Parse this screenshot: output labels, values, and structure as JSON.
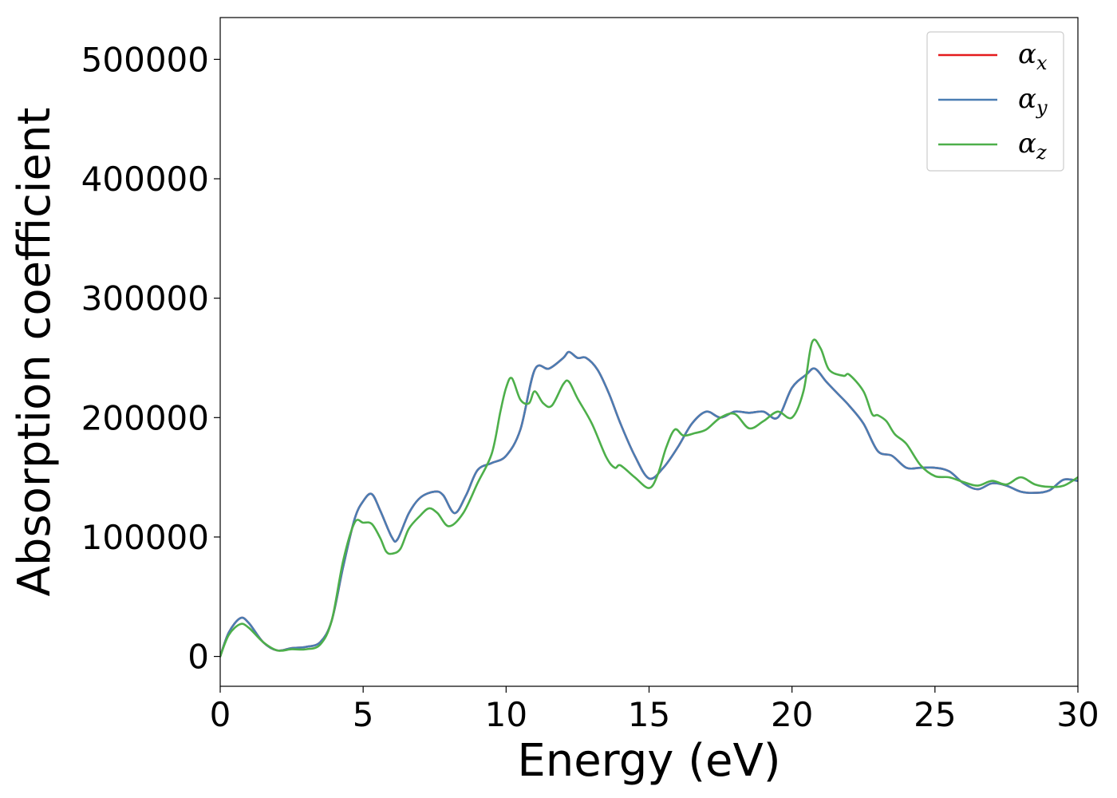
{
  "chart_data": {
    "type": "line",
    "title": "",
    "xlabel": "Energy (eV)",
    "ylabel": "Absorption coefficient",
    "xlim": [
      0,
      30
    ],
    "ylim": [
      -25000,
      535000
    ],
    "xticks": [
      0,
      5,
      10,
      15,
      20,
      25,
      30
    ],
    "xtick_labels": [
      "0",
      "5",
      "10",
      "15",
      "20",
      "25",
      "30"
    ],
    "yticks": [
      0,
      100000,
      200000,
      300000,
      400000,
      500000
    ],
    "ytick_labels": [
      "0",
      "100000",
      "200000",
      "300000",
      "400000",
      "500000"
    ],
    "grid": false,
    "legend_position": "top-right",
    "series": [
      {
        "name": "α",
        "subscript": "x",
        "color": "#e41a1c",
        "x": [
          0,
          0.3,
          0.7,
          1.0,
          1.5,
          2.0,
          2.5,
          3.0,
          3.5,
          3.9,
          4.3,
          4.7,
          5.0,
          5.3,
          5.6,
          6.0,
          6.2,
          6.6,
          7.0,
          7.5,
          7.8,
          8.2,
          8.6,
          9.0,
          9.5,
          10.0,
          10.5,
          11.0,
          11.5,
          12.0,
          12.2,
          12.5,
          12.8,
          13.2,
          13.6,
          14.0,
          14.5,
          15.0,
          15.5,
          16.0,
          16.5,
          17.0,
          17.5,
          18.0,
          18.5,
          19.0,
          19.5,
          20.0,
          20.5,
          20.8,
          21.2,
          21.6,
          22.0,
          22.5,
          23.0,
          23.5,
          24.0,
          24.5,
          25.0,
          25.5,
          26.0,
          26.5,
          27.0,
          27.5,
          28.0,
          28.5,
          29.0,
          29.5,
          30.0
        ],
        "y": [
          0,
          20000,
          32000,
          28000,
          12000,
          5000,
          7000,
          8000,
          12000,
          30000,
          75000,
          115000,
          130000,
          136000,
          122000,
          100000,
          98000,
          120000,
          133000,
          138000,
          135000,
          120000,
          135000,
          156000,
          162000,
          168000,
          190000,
          240000,
          241000,
          250000,
          255000,
          250000,
          250000,
          240000,
          220000,
          195000,
          168000,
          149000,
          158000,
          175000,
          195000,
          205000,
          200000,
          205000,
          204000,
          205000,
          200000,
          225000,
          236000,
          241000,
          230000,
          220000,
          210000,
          195000,
          172000,
          168000,
          158000,
          158000,
          158000,
          155000,
          145000,
          140000,
          145000,
          143000,
          138000,
          137000,
          139000,
          148000,
          147000
        ]
      },
      {
        "name": "α",
        "subscript": "y",
        "color": "#4a7db3",
        "x": [
          0,
          0.3,
          0.7,
          1.0,
          1.5,
          2.0,
          2.5,
          3.0,
          3.5,
          3.9,
          4.3,
          4.7,
          5.0,
          5.3,
          5.6,
          6.0,
          6.2,
          6.6,
          7.0,
          7.5,
          7.8,
          8.2,
          8.6,
          9.0,
          9.5,
          10.0,
          10.5,
          11.0,
          11.5,
          12.0,
          12.2,
          12.5,
          12.8,
          13.2,
          13.6,
          14.0,
          14.5,
          15.0,
          15.5,
          16.0,
          16.5,
          17.0,
          17.5,
          18.0,
          18.5,
          19.0,
          19.5,
          20.0,
          20.5,
          20.8,
          21.2,
          21.6,
          22.0,
          22.5,
          23.0,
          23.5,
          24.0,
          24.5,
          25.0,
          25.5,
          26.0,
          26.5,
          27.0,
          27.5,
          28.0,
          28.5,
          29.0,
          29.5,
          30.0
        ],
        "y": [
          0,
          20000,
          32000,
          28000,
          12000,
          5000,
          7000,
          8000,
          12000,
          30000,
          75000,
          115000,
          130000,
          136000,
          122000,
          100000,
          98000,
          120000,
          133000,
          138000,
          135000,
          120000,
          135000,
          156000,
          162000,
          168000,
          190000,
          240000,
          241000,
          250000,
          255000,
          250000,
          250000,
          240000,
          220000,
          195000,
          168000,
          149000,
          158000,
          175000,
          195000,
          205000,
          200000,
          205000,
          204000,
          205000,
          200000,
          225000,
          236000,
          241000,
          230000,
          220000,
          210000,
          195000,
          172000,
          168000,
          158000,
          158000,
          158000,
          155000,
          145000,
          140000,
          145000,
          143000,
          138000,
          137000,
          139000,
          148000,
          147000
        ]
      },
      {
        "name": "α",
        "subscript": "z",
        "color": "#4daf4a",
        "x": [
          0,
          0.3,
          0.7,
          1.0,
          1.5,
          2.0,
          2.5,
          3.0,
          3.5,
          3.9,
          4.3,
          4.7,
          5.0,
          5.3,
          5.6,
          5.8,
          6.0,
          6.3,
          6.6,
          7.0,
          7.3,
          7.6,
          8.0,
          8.5,
          9.0,
          9.5,
          9.8,
          10.0,
          10.2,
          10.5,
          10.8,
          11.0,
          11.3,
          11.6,
          12.0,
          12.2,
          12.5,
          13.0,
          13.5,
          13.8,
          14.0,
          14.5,
          15.0,
          15.3,
          15.6,
          15.9,
          16.2,
          16.6,
          17.0,
          17.5,
          18.0,
          18.5,
          19.0,
          19.5,
          20.0,
          20.4,
          20.7,
          21.0,
          21.3,
          21.8,
          22.0,
          22.5,
          22.8,
          23.0,
          23.3,
          23.6,
          24.0,
          24.5,
          25.0,
          25.5,
          26.0,
          26.5,
          27.0,
          27.5,
          28.0,
          28.5,
          29.0,
          29.5,
          30.0
        ],
        "y": [
          0,
          18000,
          27000,
          24000,
          12000,
          5000,
          6000,
          6000,
          10000,
          30000,
          80000,
          112000,
          112000,
          111000,
          99000,
          88000,
          86000,
          90000,
          107000,
          118000,
          124000,
          120000,
          109000,
          120000,
          145000,
          170000,
          205000,
          225000,
          233000,
          215000,
          212000,
          222000,
          212000,
          210000,
          228000,
          230000,
          216000,
          195000,
          167000,
          158000,
          160000,
          150000,
          141000,
          152000,
          175000,
          190000,
          185000,
          187000,
          190000,
          200000,
          203000,
          191000,
          197000,
          205000,
          200000,
          222000,
          263000,
          258000,
          240000,
          235000,
          236000,
          222000,
          203000,
          202000,
          197000,
          186000,
          178000,
          160000,
          151000,
          150000,
          146000,
          143000,
          147000,
          144000,
          150000,
          144000,
          142000,
          143000,
          150000
        ]
      }
    ]
  }
}
